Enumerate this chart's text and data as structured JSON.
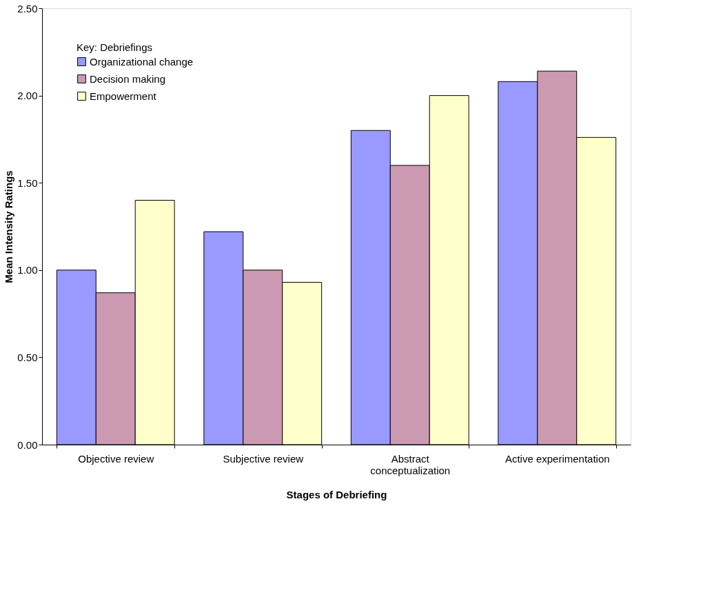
{
  "chart_data": {
    "type": "bar",
    "xlabel": "Stages of Debriefing",
    "ylabel": "Mean Intensity Ratings",
    "legend_title": "Key:  Debriefings",
    "legend": "top left",
    "grid": false,
    "categories": [
      "Objective review",
      "Subjective review",
      "Abstract conceptualization",
      "Active experimentation"
    ],
    "ylim": [
      0,
      2.5
    ],
    "yticks": [
      {
        "value": 0,
        "label": "0.00"
      },
      {
        "value": 0.5,
        "label": "0.50"
      },
      {
        "value": 1,
        "label": "1.00"
      },
      {
        "value": 1.5,
        "label": "1.50"
      },
      {
        "value": 2,
        "label": "2.00"
      },
      {
        "value": 2.5,
        "label": "2.50"
      }
    ],
    "series": [
      {
        "name": "Organizational change",
        "color": "#9999ff",
        "values": [
          1.0,
          1.22,
          1.8,
          2.08
        ]
      },
      {
        "name": "Decision making",
        "color": "#cc99b2",
        "values": [
          0.87,
          1.0,
          1.6,
          2.14
        ]
      },
      {
        "name": "Empowerment",
        "color": "#ffffcc",
        "values": [
          1.4,
          0.93,
          2.0,
          1.76
        ]
      }
    ]
  }
}
